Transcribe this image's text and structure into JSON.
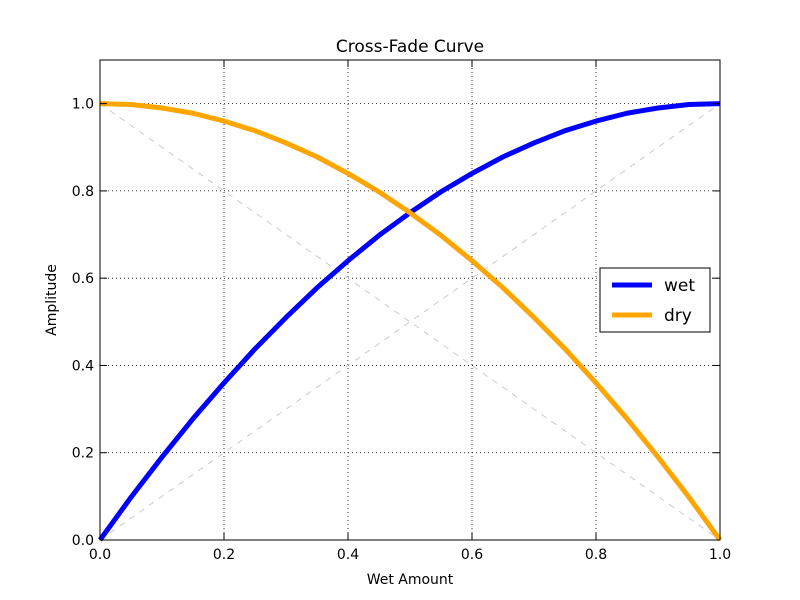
{
  "chart_data": {
    "type": "line",
    "title": "Cross-Fade Curve",
    "xlabel": "Wet Amount",
    "ylabel": "Amplitude",
    "xlim": [
      0.0,
      1.0
    ],
    "ylim": [
      0.0,
      1.1
    ],
    "x_ticks": [
      0.0,
      0.2,
      0.4,
      0.6,
      0.8,
      1.0
    ],
    "x_tick_labels": [
      "0.0",
      "0.2",
      "0.4",
      "0.6",
      "0.8",
      "1.0"
    ],
    "y_ticks": [
      0.0,
      0.2,
      0.4,
      0.6,
      0.8,
      1.0
    ],
    "y_tick_labels": [
      "0.0",
      "0.2",
      "0.4",
      "0.6",
      "0.8",
      "1.0"
    ],
    "grid": true,
    "legend_position": "center-right",
    "x": [
      0.0,
      0.05,
      0.1,
      0.15,
      0.2,
      0.25,
      0.3,
      0.35,
      0.4,
      0.45,
      0.5,
      0.55,
      0.6,
      0.65,
      0.7,
      0.75,
      0.8,
      0.85,
      0.9,
      0.95,
      1.0
    ],
    "series": [
      {
        "name": "wet",
        "color": "#0000ff",
        "values": [
          0.0,
          0.098,
          0.19,
          0.278,
          0.36,
          0.438,
          0.51,
          0.578,
          0.64,
          0.698,
          0.75,
          0.798,
          0.84,
          0.878,
          0.91,
          0.938,
          0.96,
          0.978,
          0.99,
          0.998,
          1.0
        ]
      },
      {
        "name": "dry",
        "color": "#ffa500",
        "values": [
          1.0,
          0.998,
          0.99,
          0.978,
          0.96,
          0.938,
          0.91,
          0.878,
          0.84,
          0.798,
          0.75,
          0.698,
          0.64,
          0.578,
          0.51,
          0.438,
          0.36,
          0.278,
          0.19,
          0.098,
          0.0
        ]
      }
    ],
    "reference_lines": [
      {
        "x": [
          0.0,
          1.0
        ],
        "y": [
          0.0,
          1.0
        ],
        "color": "#cccccc"
      },
      {
        "x": [
          0.0,
          1.0
        ],
        "y": [
          1.0,
          0.0
        ],
        "color": "#cccccc"
      }
    ]
  }
}
